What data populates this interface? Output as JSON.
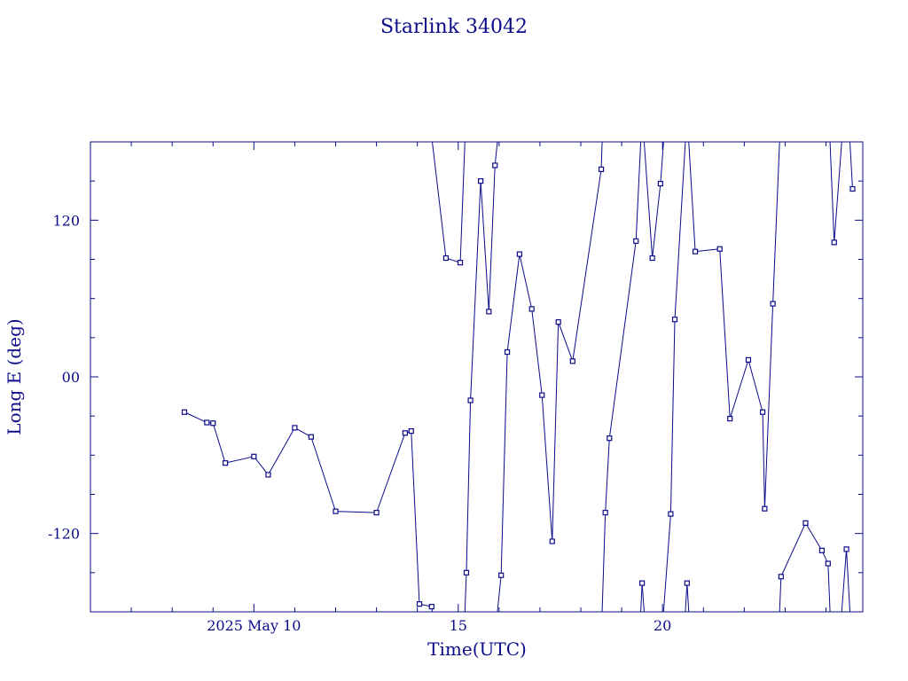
{
  "chart_data": {
    "type": "line",
    "title": "Starlink 34042",
    "xlabel": "Time(UTC)",
    "ylabel": "Long E (deg)",
    "xlim": [
      6.0,
      24.9
    ],
    "ylim": [
      -180,
      180
    ],
    "x_ticks": [
      {
        "value": 10,
        "label": "2025 May 10"
      },
      {
        "value": 15,
        "label": "15"
      },
      {
        "value": 20,
        "label": "20"
      }
    ],
    "y_ticks": [
      {
        "value": 120,
        "label": "120"
      },
      {
        "value": 0,
        "label": "00"
      },
      {
        "value": -120,
        "label": "-120"
      }
    ],
    "grid": false,
    "color": "#0b0b8a",
    "wrap_longitude": true,
    "series": [
      {
        "points": [
          [
            8.3,
            -27
          ],
          [
            8.85,
            -35
          ],
          [
            9.0,
            -35.5
          ],
          [
            9.3,
            -66
          ],
          [
            10.0,
            -61
          ],
          [
            10.35,
            -75
          ],
          [
            11.0,
            -39
          ],
          [
            11.4,
            -46
          ],
          [
            12.0,
            -103
          ],
          [
            13.0,
            -104
          ],
          [
            13.7,
            -43
          ],
          [
            13.85,
            -41.5
          ],
          [
            14.05,
            -174
          ],
          [
            14.35,
            -176
          ],
          [
            14.7,
            91
          ],
          [
            15.05,
            87.5
          ],
          [
            15.2,
            -150
          ],
          [
            15.3,
            -18
          ],
          [
            15.55,
            150
          ],
          [
            15.75,
            50
          ],
          [
            15.9,
            162
          ],
          [
            16.05,
            -152
          ],
          [
            16.2,
            19
          ],
          [
            16.5,
            94
          ],
          [
            16.8,
            52
          ],
          [
            17.05,
            -14
          ],
          [
            17.3,
            -126
          ],
          [
            17.45,
            42
          ],
          [
            17.8,
            12
          ],
          [
            18.5,
            159
          ],
          [
            18.6,
            -104
          ],
          [
            18.7,
            -47
          ],
          [
            19.35,
            104
          ],
          [
            19.5,
            -158
          ],
          [
            19.75,
            91
          ],
          [
            19.95,
            148
          ],
          [
            20.2,
            -105
          ],
          [
            20.3,
            44
          ],
          [
            20.6,
            -158
          ],
          [
            20.8,
            96
          ],
          [
            21.4,
            98
          ],
          [
            21.65,
            -32
          ],
          [
            22.1,
            13
          ],
          [
            22.45,
            -27
          ],
          [
            22.5,
            -101
          ],
          [
            22.7,
            56
          ],
          [
            22.9,
            -153
          ],
          [
            23.5,
            -112
          ],
          [
            23.9,
            -133
          ],
          [
            24.05,
            -143
          ],
          [
            24.2,
            103
          ],
          [
            24.5,
            -132
          ],
          [
            24.65,
            144
          ]
        ]
      }
    ]
  }
}
